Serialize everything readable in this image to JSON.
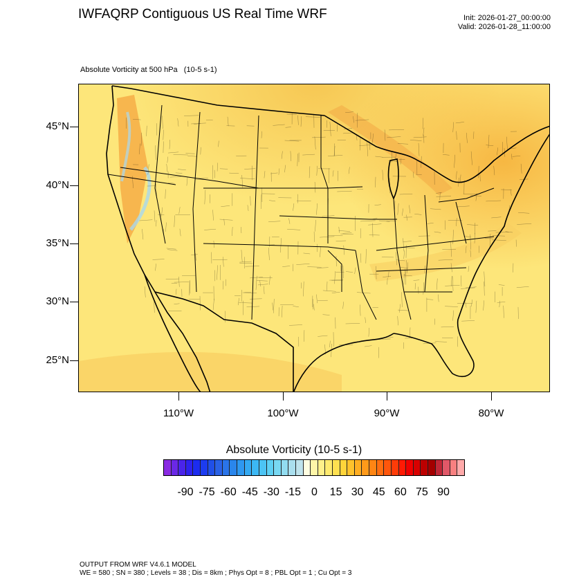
{
  "header": {
    "title": "IWFAQRP Contiguous US Real Time WRF",
    "init": "Init: 2026-01-27_00:00:00",
    "valid": "Valid: 2026-01-28_11:00:00"
  },
  "field": {
    "label": "Absolute Vorticity at 500 hPa   (10-5 s-1)"
  },
  "map": {
    "lat_labels": [
      "45°N",
      "40°N",
      "35°N",
      "30°N",
      "25°N"
    ],
    "lon_labels": [
      "110°W",
      "100°W",
      "90°W",
      "80°W"
    ],
    "colors": {
      "background": "#fdeb7a",
      "ocean": "#fbe98a",
      "high_vorticity": "#f6b23c",
      "negative": "#a9d8ee",
      "border": "#000000"
    }
  },
  "colorbar": {
    "title": "Absolute Vorticity  (10-5 s-1)",
    "tick_labels": [
      "-90",
      "-75",
      "-60",
      "-45",
      "-30",
      "-15",
      "0",
      "15",
      "30",
      "45",
      "60",
      "75",
      "90"
    ],
    "colors": [
      "#8a2be2",
      "#6a28e6",
      "#4a24ea",
      "#2e22ee",
      "#1c2cf0",
      "#1c3cf0",
      "#2050e8",
      "#2a62e6",
      "#2a74e8",
      "#2a86ec",
      "#2e98f0",
      "#34aaf2",
      "#3cb8f4",
      "#4cc4f4",
      "#5ed0f4",
      "#78d8f2",
      "#92dcf0",
      "#aadfee",
      "#bfe3ec",
      "#fffde0",
      "#fff6a8",
      "#fff08a",
      "#ffea6e",
      "#ffe050",
      "#ffd43a",
      "#ffc22c",
      "#ffae22",
      "#ff9a1a",
      "#ff8514",
      "#ff6e10",
      "#ff560c",
      "#ff3c08",
      "#ff1a04",
      "#f00000",
      "#d80000",
      "#bc0000",
      "#a40000",
      "#c02838",
      "#e05868",
      "#f88080",
      "#ffaaaa"
    ]
  },
  "footer": {
    "line1": "OUTPUT FROM WRF V4.6.1 MODEL",
    "line2": "WE = 580 ; SN = 380 ; Levels = 38 ; Dis = 8km ; Phys Opt = 8 ; PBL Opt = 1 ; Cu Opt = 3"
  }
}
